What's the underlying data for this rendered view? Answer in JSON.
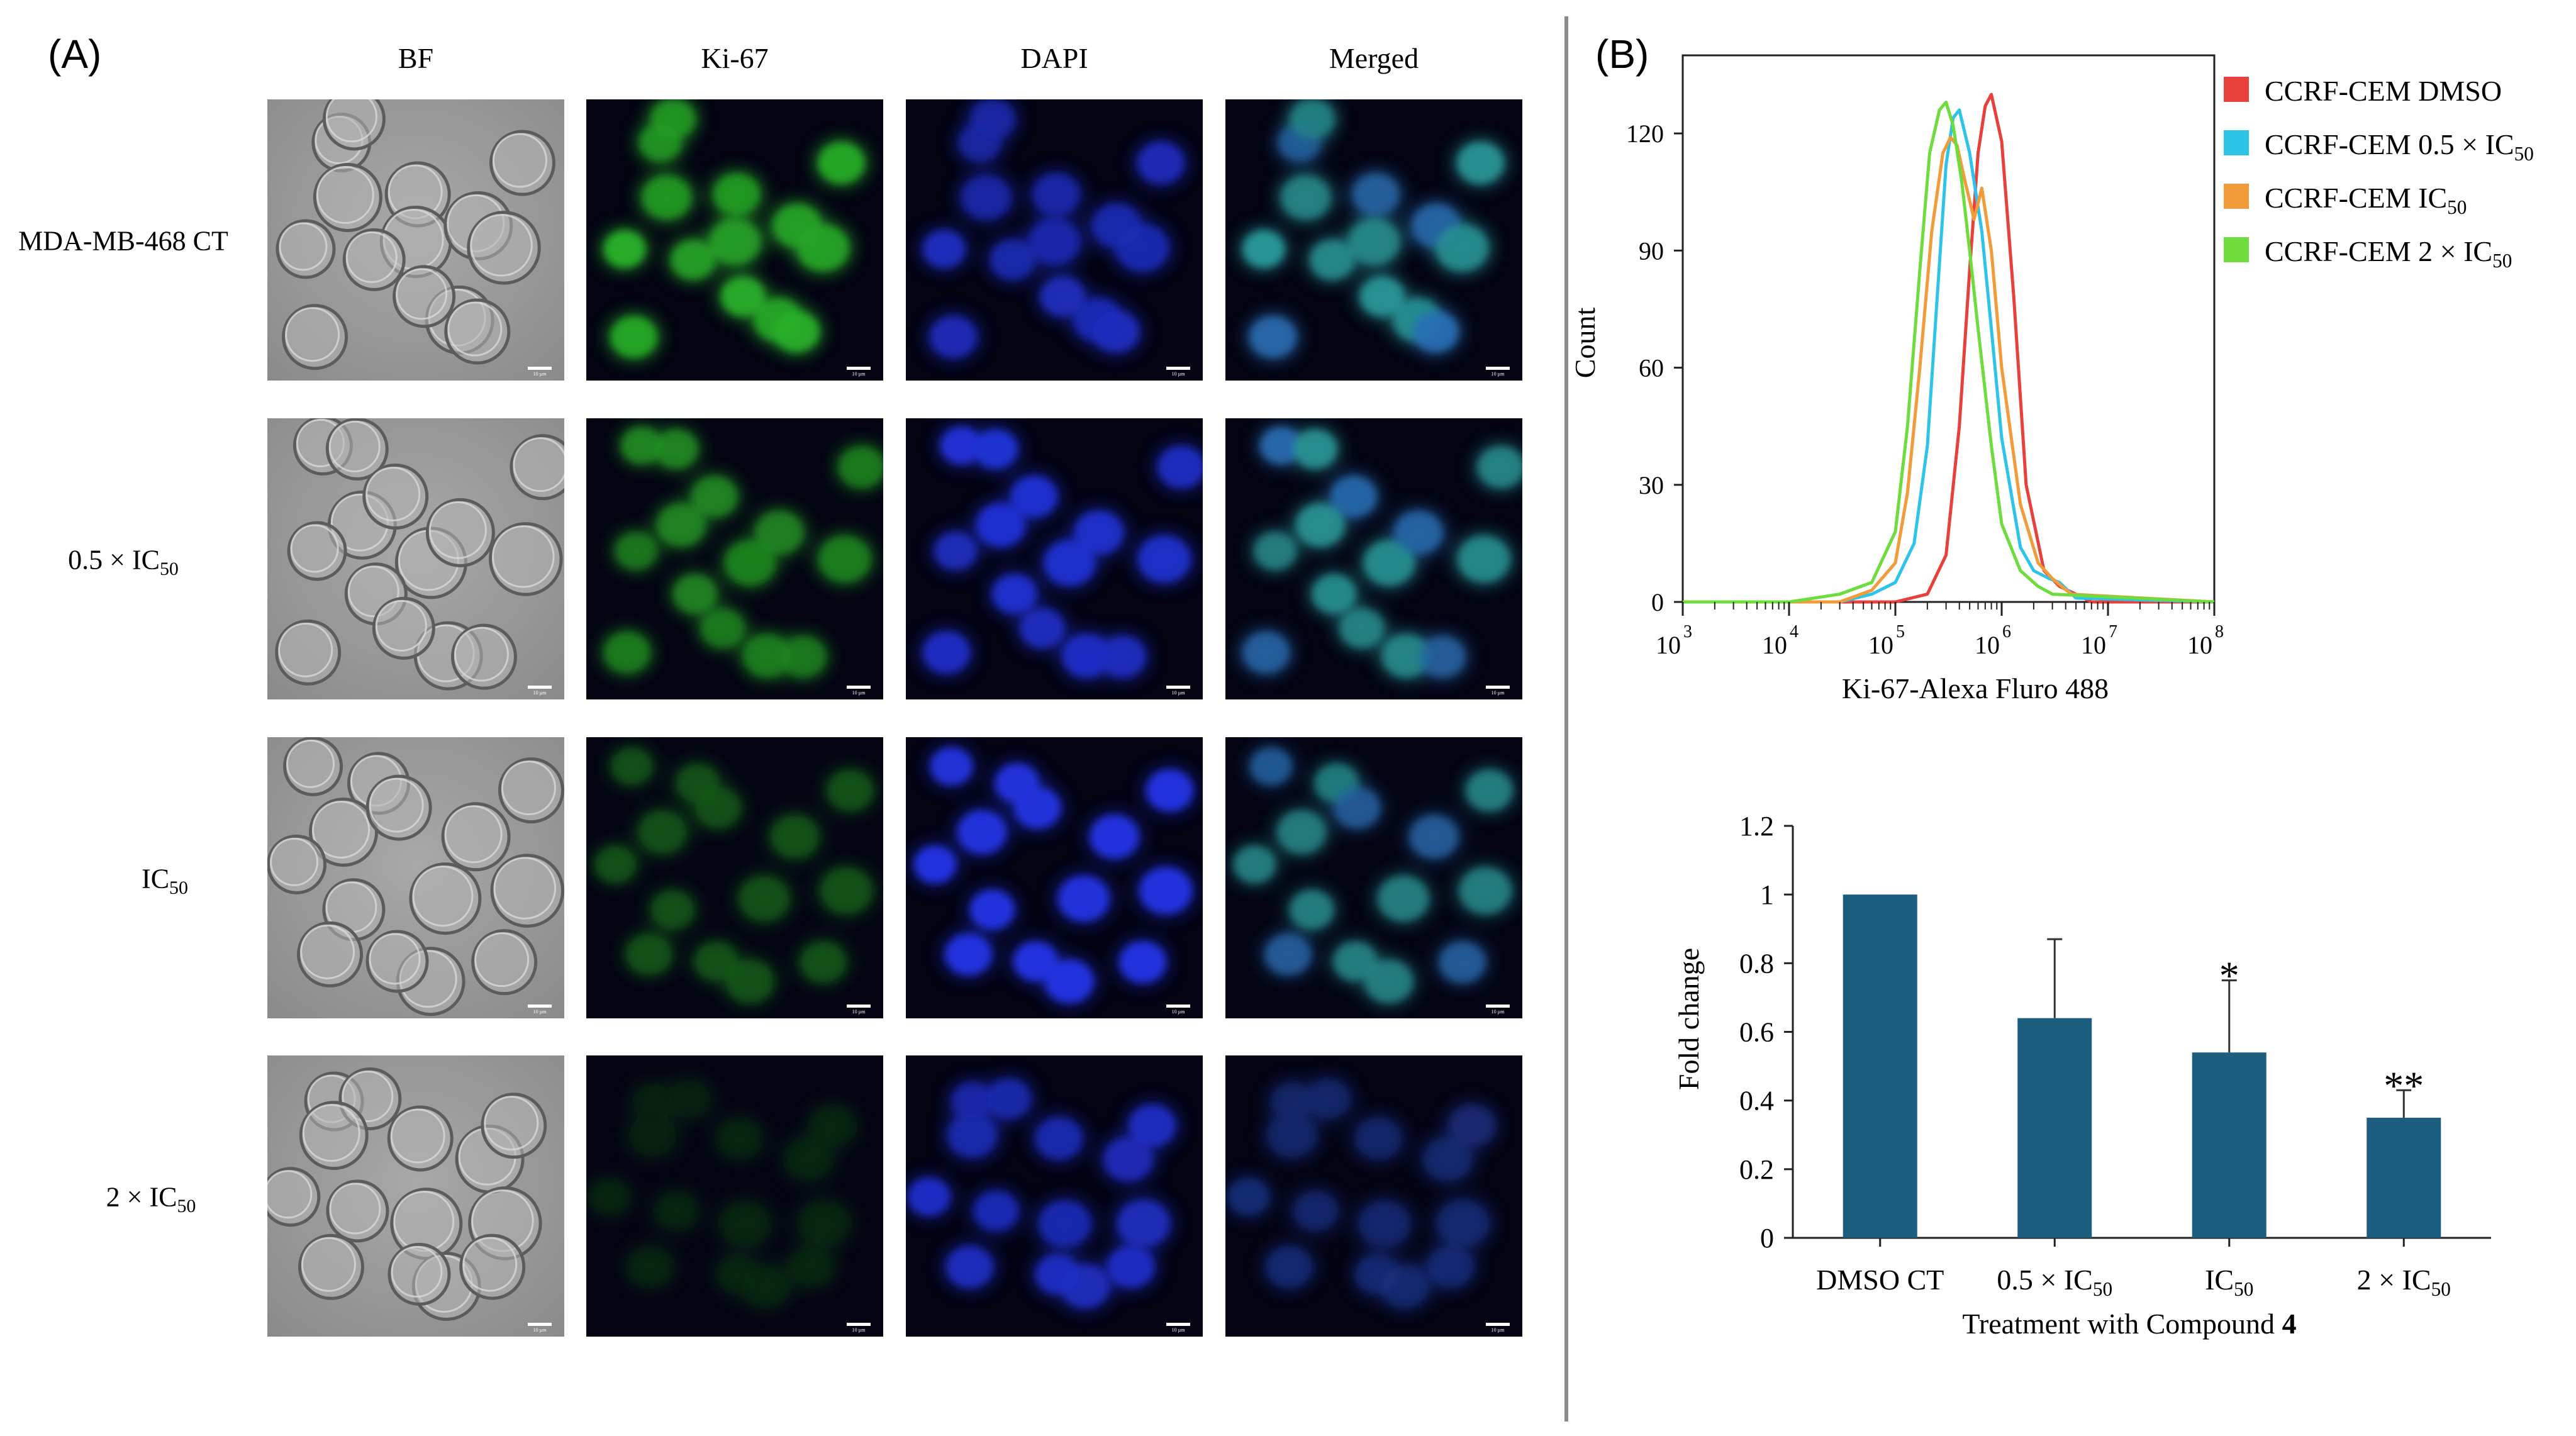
{
  "panel_a": {
    "label": "(A)",
    "columns": [
      "BF",
      "Ki-67",
      "DAPI",
      "Merged"
    ],
    "rows": [
      {
        "main": "MDA-MB-468 CT",
        "sub": ""
      },
      {
        "main": "0.5 × IC",
        "sub": "50"
      },
      {
        "main": "IC",
        "sub": "50"
      },
      {
        "main": "2 × IC",
        "sub": "50"
      }
    ],
    "scale_bar_text": "10 µm",
    "channel_colors": {
      "BF": "#8f8f8f",
      "Ki-67": "#2ecc2e",
      "DAPI": "#2233dd",
      "Merged": "#2fb0b0"
    },
    "signal_strength": {
      "Ki-67": [
        1.0,
        0.75,
        0.5,
        0.25
      ],
      "DAPI": [
        1.0,
        1.0,
        1.0,
        1.0
      ]
    }
  },
  "panel_b_label": "(B)",
  "chart_data": [
    {
      "type": "line",
      "xlabel": "Ki-67-Alexa Fluro 488",
      "ylabel": "Count",
      "x_scale": "log",
      "xlim": [
        1000,
        100000000
      ],
      "ylim": [
        0,
        140
      ],
      "y_ticks": [
        0,
        30,
        60,
        90,
        120
      ],
      "x_tick_labels": [
        {
          "base": "10",
          "exp": "3"
        },
        {
          "base": "10",
          "exp": "4"
        },
        {
          "base": "10",
          "exp": "5"
        },
        {
          "base": "10",
          "exp": "6"
        },
        {
          "base": "10",
          "exp": "7"
        },
        {
          "base": "10",
          "exp": "8"
        }
      ],
      "legend_position": "right",
      "series": [
        {
          "name": "CCRF-CEM DMSO",
          "sub": "",
          "color": "#e8403a",
          "x": [
            1000,
            100000,
            200000,
            300000,
            400000,
            500000,
            600000,
            700000,
            800000,
            1000000,
            1300000,
            1700000,
            2500000,
            3500000,
            5000000,
            7000000,
            100000000
          ],
          "y": [
            0,
            0,
            2,
            12,
            45,
            85,
            115,
            127,
            130,
            118,
            78,
            30,
            8,
            4,
            2,
            0,
            0
          ]
        },
        {
          "name": "CCRF-CEM 0.5 × IC",
          "sub": "50",
          "color": "#2ec4ea",
          "x": [
            1000,
            30000,
            60000,
            100000,
            150000,
            200000,
            250000,
            300000,
            350000,
            400000,
            500000,
            650000,
            800000,
            1000000,
            1500000,
            2000000,
            2800000,
            3500000,
            5000000,
            100000000
          ],
          "y": [
            0,
            0,
            2,
            5,
            15,
            40,
            80,
            112,
            124,
            126,
            115,
            95,
            70,
            42,
            14,
            8,
            6,
            5,
            1,
            0
          ]
        },
        {
          "name": "CCRF-CEM IC",
          "sub": "50",
          "color": "#f29b3a",
          "x": [
            1000,
            30000,
            60000,
            100000,
            130000,
            170000,
            220000,
            280000,
            330000,
            380000,
            450000,
            550000,
            650000,
            800000,
            1000000,
            1500000,
            2200000,
            3000000,
            4500000,
            100000000
          ],
          "y": [
            0,
            0,
            3,
            10,
            28,
            60,
            95,
            115,
            119,
            117,
            108,
            98,
            106,
            90,
            60,
            25,
            10,
            6,
            2,
            0
          ]
        },
        {
          "name": "CCRF-CEM 2 × IC",
          "sub": "50",
          "color": "#6edc3c",
          "x": [
            1000,
            10000,
            30000,
            60000,
            100000,
            130000,
            170000,
            210000,
            260000,
            300000,
            350000,
            420000,
            500000,
            600000,
            800000,
            1000000,
            1500000,
            2200000,
            3000000,
            100000000
          ],
          "y": [
            0,
            0,
            2,
            5,
            18,
            45,
            85,
            115,
            126,
            128,
            122,
            108,
            90,
            70,
            40,
            20,
            8,
            4,
            2,
            0
          ]
        }
      ]
    },
    {
      "type": "bar",
      "xlabel": "Treatment with Compound ",
      "xlabel_bold": "4",
      "ylabel": "Fold change",
      "ylim": [
        0,
        1.2
      ],
      "y_ticks": [
        "0",
        "0.2",
        "0.4",
        "0.6",
        "0.8",
        "1",
        "1.2"
      ],
      "categories": [
        {
          "main": "DMSO CT",
          "sub": ""
        },
        {
          "main": "0.5 × IC",
          "sub": "50"
        },
        {
          "main": "IC",
          "sub": "50"
        },
        {
          "main": "2 × IC",
          "sub": "50"
        }
      ],
      "values": [
        1.0,
        0.64,
        0.54,
        0.35
      ],
      "errors": [
        0,
        0.23,
        0.21,
        0.08
      ],
      "significance": [
        "",
        "",
        "*",
        "**"
      ],
      "bar_color": "#1b5e80",
      "grid": false
    }
  ]
}
